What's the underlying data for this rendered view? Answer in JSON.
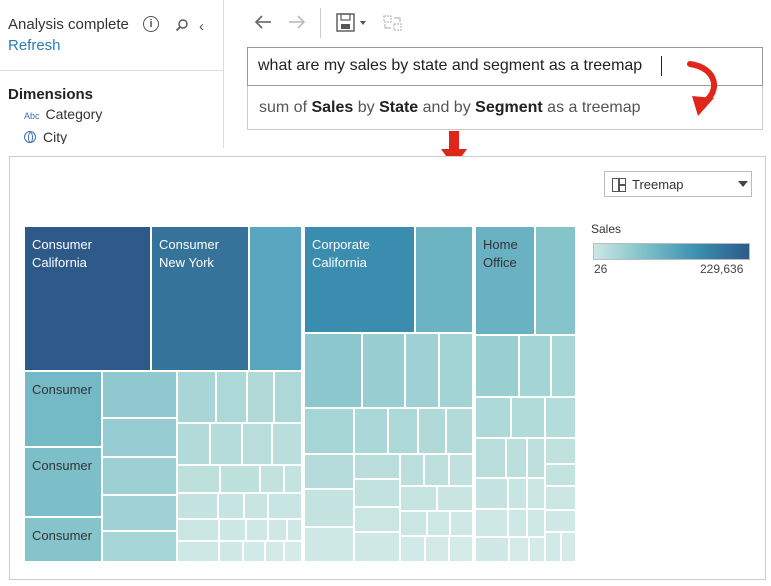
{
  "side_panel": {
    "status_title": "Analysis complete",
    "refresh_label": "Refresh",
    "dimensions_title": "Dimensions",
    "fields": [
      {
        "type_badge": "Abc",
        "label": "Category"
      },
      {
        "type_badge": "globe-icon",
        "label": "City"
      }
    ]
  },
  "toolbar": {
    "icons": [
      "back-arrow-icon",
      "forward-arrow-icon",
      "save-icon",
      "swap-icon"
    ]
  },
  "query": {
    "input_value": "what are my sales by state and segment as a treemap",
    "interpretation": {
      "p1": "sum of ",
      "b1": "Sales",
      "p2": " by ",
      "b2": "State",
      "p3": " and by ",
      "b3": "Segment",
      "p4": " as a treemap"
    }
  },
  "viz": {
    "type_selector": "Treemap",
    "legend": {
      "title": "Sales",
      "min": "26",
      "max": "229,636"
    },
    "tile_labels": {
      "consumer_california": [
        "Consumer",
        "California"
      ],
      "consumer_new_york": [
        "Consumer",
        "New York"
      ],
      "corporate_california": [
        "Corporate",
        "California"
      ],
      "home_office": [
        "Home",
        "Office"
      ],
      "consumer_a": "Consumer",
      "consumer_b": "Consumer",
      "consumer_c": "Consumer"
    }
  },
  "annotation_colors": {
    "arrow": "#e0261b",
    "accent": "#2b7bb9"
  }
}
